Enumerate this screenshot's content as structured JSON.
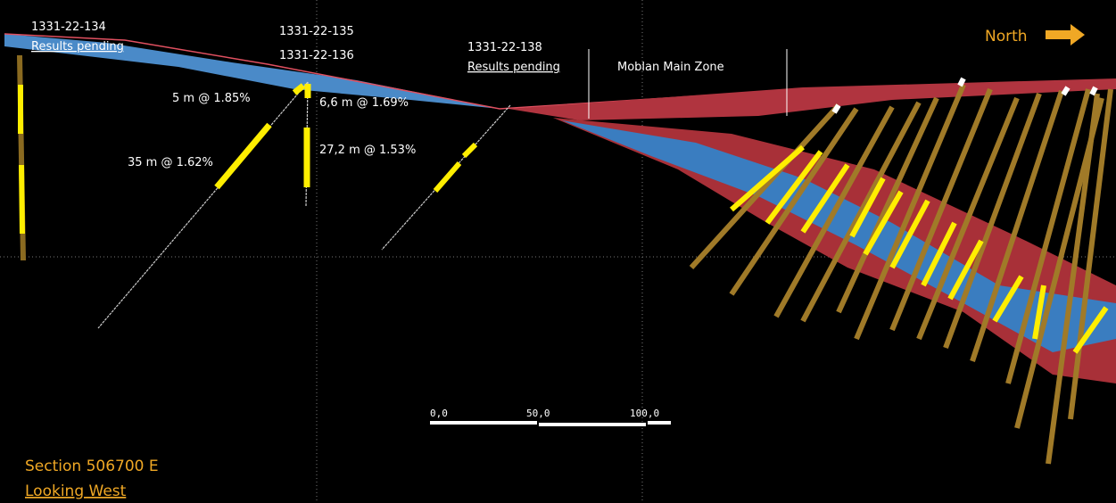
{
  "holes": [
    {
      "label": "1331-22-134",
      "note": "Results pending"
    },
    {
      "label": "1331-22-135"
    },
    {
      "label": "1331-22-136"
    },
    {
      "label": "1331-22-138",
      "note": "Results pending"
    }
  ],
  "intercepts": [
    "5 m @ 1.85%",
    "6,6 m @ 1.69%",
    "35 m @ 1.62%",
    "27,2 m @ 1.53%"
  ],
  "zone_label": "Moblan Main Zone",
  "direction": "North",
  "scale_bar": [
    "0,0",
    "50,0",
    "100,0"
  ],
  "section": {
    "title": "Section 506700 E",
    "view": "Looking West"
  }
}
